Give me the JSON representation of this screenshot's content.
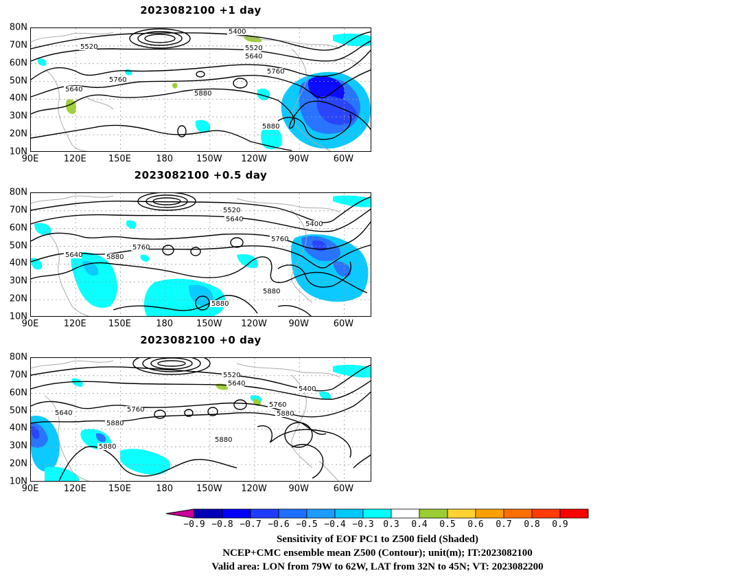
{
  "panels": [
    {
      "title": "2023082100  +1 day",
      "contour_labels": [
        "5400",
        "5520",
        "5520",
        "5640",
        "5640",
        "5760",
        "5760",
        "5880",
        "5880"
      ]
    },
    {
      "title": "2023082100  +0.5 day",
      "contour_labels": [
        "5520",
        "5640",
        "5400",
        "5760",
        "5640",
        "5760",
        "5880",
        "5880",
        "5880"
      ]
    },
    {
      "title": "2023082100  +0 day",
      "contour_labels": [
        "5520",
        "5640",
        "5400",
        "5760",
        "5880",
        "5640",
        "5760",
        "5880",
        "5880",
        "5880"
      ]
    }
  ],
  "y_ticks": [
    "80N",
    "70N",
    "60N",
    "50N",
    "40N",
    "30N",
    "20N",
    "10N"
  ],
  "x_ticks": [
    "90E",
    "120E",
    "150E",
    "180",
    "150W",
    "120W",
    "90W",
    "60W"
  ],
  "colorbar": {
    "labels": [
      "−0.9",
      "−0.8",
      "−0.7",
      "−0.6",
      "−0.5",
      "−0.4",
      "−0.3",
      "0.3",
      "0.4",
      "0.5",
      "0.6",
      "0.7",
      "0.8",
      "0.9"
    ],
    "colors": [
      "#c8009a",
      "#0000b4",
      "#0000ff",
      "#1e3cff",
      "#1e6eff",
      "#1e9bff",
      "#00c8ff",
      "#00ffff",
      "#ffffff",
      "#9bcd32",
      "#ffd232",
      "#ffa000",
      "#ff6e00",
      "#ff3c00",
      "#ff0000",
      "#ff96c8"
    ]
  },
  "captions": [
    "Sensitivity of EOF PC1 to Z500 field (Shaded)",
    "NCEP+CMC ensemble mean Z500 (Contour); unit(m); IT:2023082100",
    "Valid area: LON from 79W to 62W, LAT from 32N to 45N; VT: 2023082200"
  ]
}
